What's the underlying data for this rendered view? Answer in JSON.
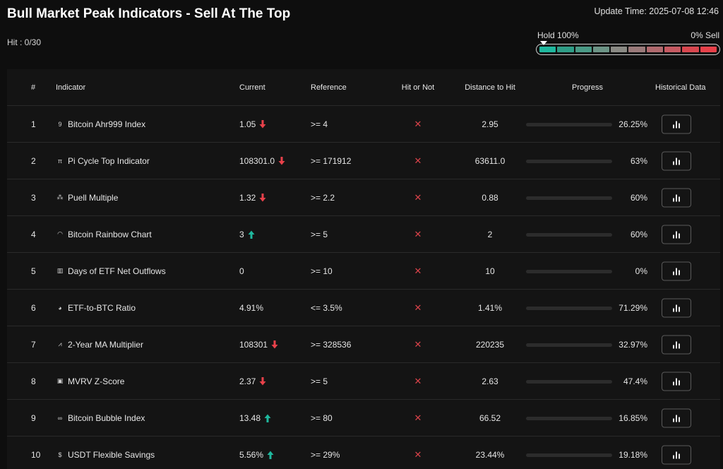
{
  "header": {
    "title": "Bull Market Peak Indicators - Sell At The Top",
    "hit": "Hit : 0/30",
    "update_time": "Update Time: 2025-07-08 12:46",
    "gauge": {
      "left_label": "Hold 100%",
      "right_label": "0% Sell",
      "segment_colors": [
        "#1fb89e",
        "#2f9d87",
        "#4a9a86",
        "#6c9486",
        "#8a8a84",
        "#9a7a7a",
        "#b06a6e",
        "#c65a62",
        "#d8474f",
        "#e8414a"
      ]
    }
  },
  "table": {
    "columns": [
      "#",
      "Indicator",
      "Current",
      "Reference",
      "Hit or Not",
      "Distance to Hit",
      "Progress",
      "Historical Data"
    ],
    "rows": [
      {
        "num": "1",
        "icon": "ahr999-icon",
        "icon_glyph": "9",
        "name": "Bitcoin Ahr999 Index",
        "current": "1.05",
        "trend": "down",
        "reference": ">= 4",
        "hit": "✕",
        "distance": "2.95",
        "progress": 26.25,
        "progress_label": "26.25%"
      },
      {
        "num": "2",
        "icon": "pi-cycle-icon",
        "icon_glyph": "π",
        "name": "Pi Cycle Top Indicator",
        "current": "108301.0",
        "trend": "down",
        "reference": ">= 171912",
        "hit": "✕",
        "distance": "63611.0",
        "progress": 63,
        "progress_label": "63%"
      },
      {
        "num": "3",
        "icon": "puell-icon",
        "icon_glyph": "⁂",
        "name": "Puell Multiple",
        "current": "1.32",
        "trend": "down",
        "reference": ">= 2.2",
        "hit": "✕",
        "distance": "0.88",
        "progress": 60,
        "progress_label": "60%"
      },
      {
        "num": "4",
        "icon": "rainbow-icon",
        "icon_glyph": "◠",
        "name": "Bitcoin Rainbow Chart",
        "current": "3",
        "trend": "up",
        "reference": ">= 5",
        "hit": "✕",
        "distance": "2",
        "progress": 60,
        "progress_label": "60%"
      },
      {
        "num": "5",
        "icon": "bar-chart-icon",
        "icon_glyph": "▥",
        "name": "Days of ETF Net Outflows",
        "current": "0",
        "trend": "none",
        "reference": ">= 10",
        "hit": "✕",
        "distance": "10",
        "progress": 0,
        "progress_label": "0%"
      },
      {
        "num": "6",
        "icon": "pie-chart-icon",
        "icon_glyph": "◕",
        "name": "ETF-to-BTC Ratio",
        "current": "4.91%",
        "trend": "none",
        "reference": "<= 3.5%",
        "hit": "✕",
        "distance": "1.41%",
        "progress": 71.29,
        "progress_label": "71.29%"
      },
      {
        "num": "7",
        "icon": "line-chart-icon",
        "icon_glyph": "⩘",
        "name": "2-Year MA Multiplier",
        "current": "108301",
        "trend": "down",
        "reference": ">= 328536",
        "hit": "✕",
        "distance": "220235",
        "progress": 32.97,
        "progress_label": "32.97%"
      },
      {
        "num": "8",
        "icon": "clipboard-icon",
        "icon_glyph": "▣",
        "name": "MVRV Z-Score",
        "current": "2.37",
        "trend": "down",
        "reference": ">= 5",
        "hit": "✕",
        "distance": "2.63",
        "progress": 47.4,
        "progress_label": "47.4%"
      },
      {
        "num": "9",
        "icon": "bubble-icon",
        "icon_glyph": "∞",
        "name": "Bitcoin Bubble Index",
        "current": "13.48",
        "trend": "up",
        "reference": ">= 80",
        "hit": "✕",
        "distance": "66.52",
        "progress": 16.85,
        "progress_label": "16.85%"
      },
      {
        "num": "10",
        "icon": "dollar-icon",
        "icon_glyph": "$",
        "name": "USDT Flexible Savings",
        "current": "5.56%",
        "trend": "up",
        "reference": ">= 29%",
        "hit": "✕",
        "distance": "23.44%",
        "progress": 19.18,
        "progress_label": "19.18%"
      }
    ]
  },
  "colors": {
    "up": "#1fb89e",
    "down": "#e8414a",
    "hit_x": "#d9434a"
  }
}
